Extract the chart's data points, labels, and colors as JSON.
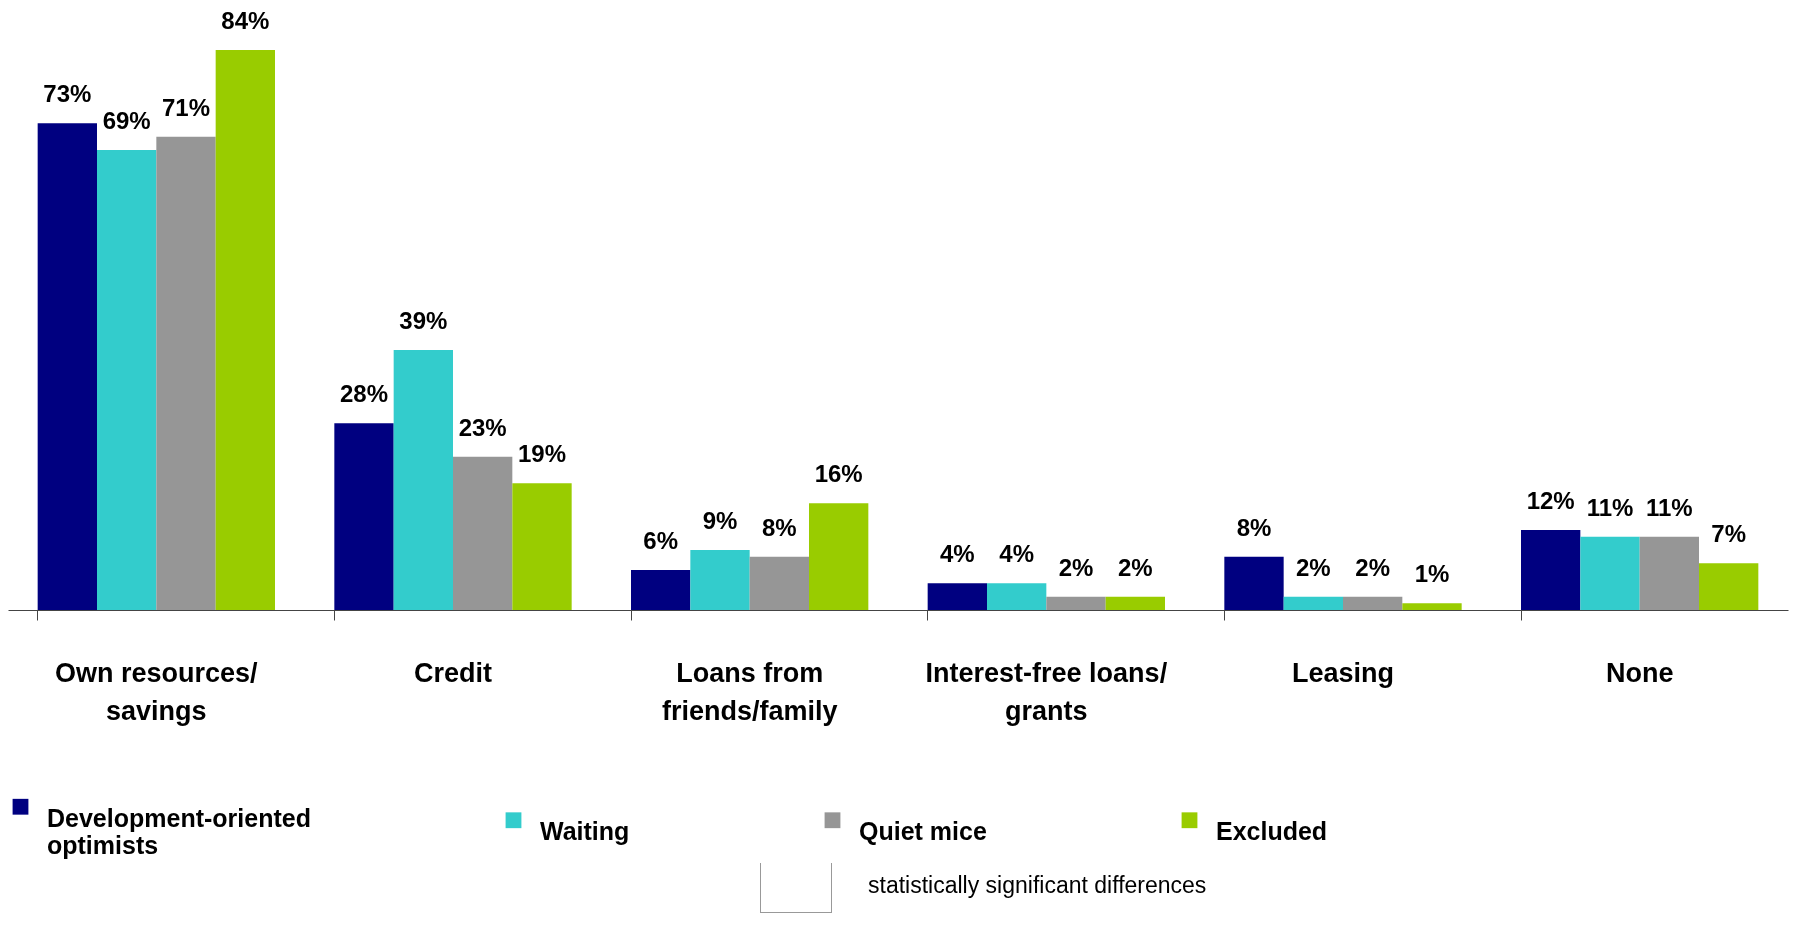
{
  "chart_data": {
    "type": "bar",
    "categories": [
      "Own resources/ savings",
      "Credit",
      "Loans from friends/family",
      "Interest-free loans/ grants",
      "Leasing",
      "None"
    ],
    "series": [
      {
        "name": "Development-oriented optimists",
        "color": "#000080",
        "values": [
          73,
          28,
          6,
          4,
          8,
          12
        ],
        "value_labels": [
          "73%",
          "28%",
          "6%",
          "4%",
          "8%",
          "12%"
        ]
      },
      {
        "name": "Waiting",
        "color": "#33cccc",
        "values": [
          69,
          39,
          9,
          4,
          2,
          11
        ],
        "value_labels": [
          "69%",
          "39%",
          "9%",
          "4%",
          "2%",
          "11%"
        ]
      },
      {
        "name": "Quiet mice",
        "color": "#969696",
        "values": [
          71,
          23,
          8,
          2,
          2,
          11
        ],
        "value_labels": [
          "71%",
          "23%",
          "8%",
          "2%",
          "2%",
          "11%"
        ]
      },
      {
        "name": "Excluded",
        "color": "#99cc00",
        "values": [
          84,
          19,
          16,
          2,
          1,
          7
        ],
        "value_labels": [
          "84%",
          "19%",
          "16%",
          "2%",
          "1%",
          "7%"
        ]
      }
    ],
    "grid": false,
    "legend": "bottom",
    "annotations": [
      "statistically significant differences"
    ]
  }
}
